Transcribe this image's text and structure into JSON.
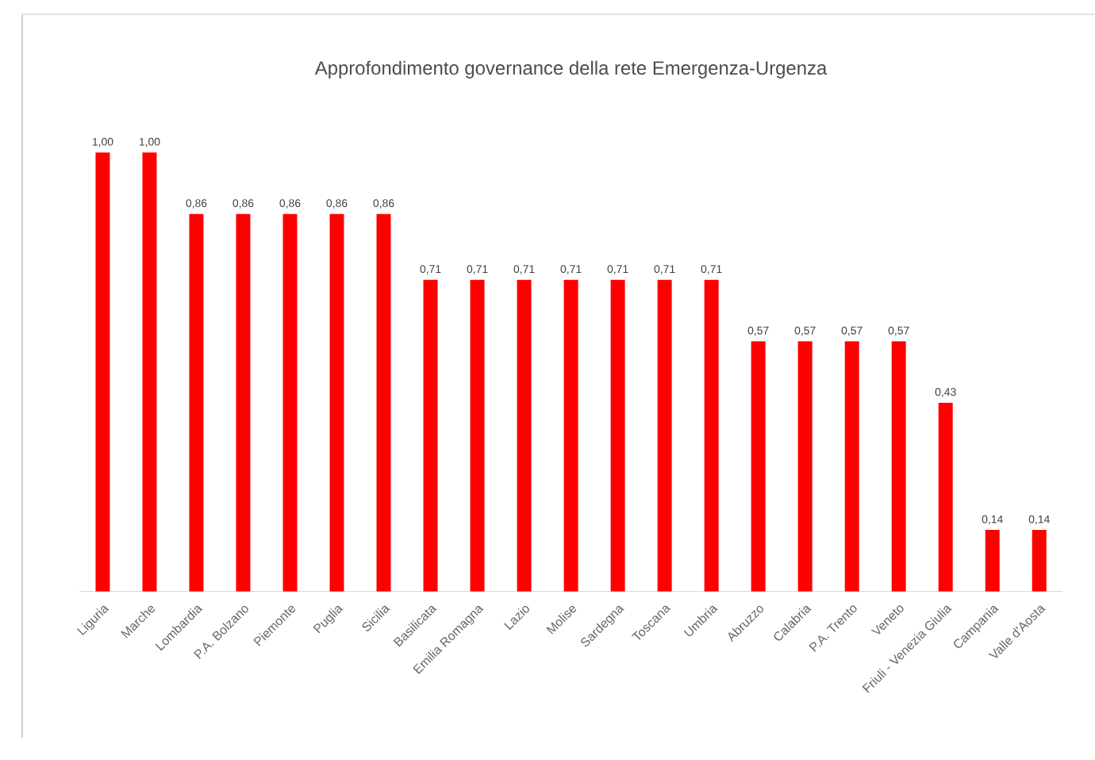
{
  "chart_data": {
    "type": "bar",
    "title": "Approfondimento governance della rete Emergenza-Urgenza",
    "categories": [
      "Liguria",
      "Marche",
      "Lombardia",
      "P.A. Bolzano",
      "Piemonte",
      "Puglia",
      "Sicilia",
      "Basilicata",
      "Emilia Romagna",
      "Lazio",
      "Molise",
      "Sardegna",
      "Toscana",
      "Umbria",
      "Abruzzo",
      "Calabria",
      "P.A. Trento",
      "Veneto",
      "Friuli - Venezia Giulia",
      "Campania",
      "Valle d'Aosta"
    ],
    "values": [
      1.0,
      1.0,
      0.86,
      0.86,
      0.86,
      0.86,
      0.86,
      0.71,
      0.71,
      0.71,
      0.71,
      0.71,
      0.71,
      0.71,
      0.57,
      0.57,
      0.57,
      0.57,
      0.43,
      0.14,
      0.14
    ],
    "value_labels": [
      "1,00",
      "1,00",
      "0,86",
      "0,86",
      "0,86",
      "0,86",
      "0,86",
      "0,71",
      "0,71",
      "0,71",
      "0,71",
      "0,71",
      "0,71",
      "0,71",
      "0,57",
      "0,57",
      "0,57",
      "0,57",
      "0,43",
      "0,14",
      "0,14"
    ],
    "color": "#ff0000"
  }
}
